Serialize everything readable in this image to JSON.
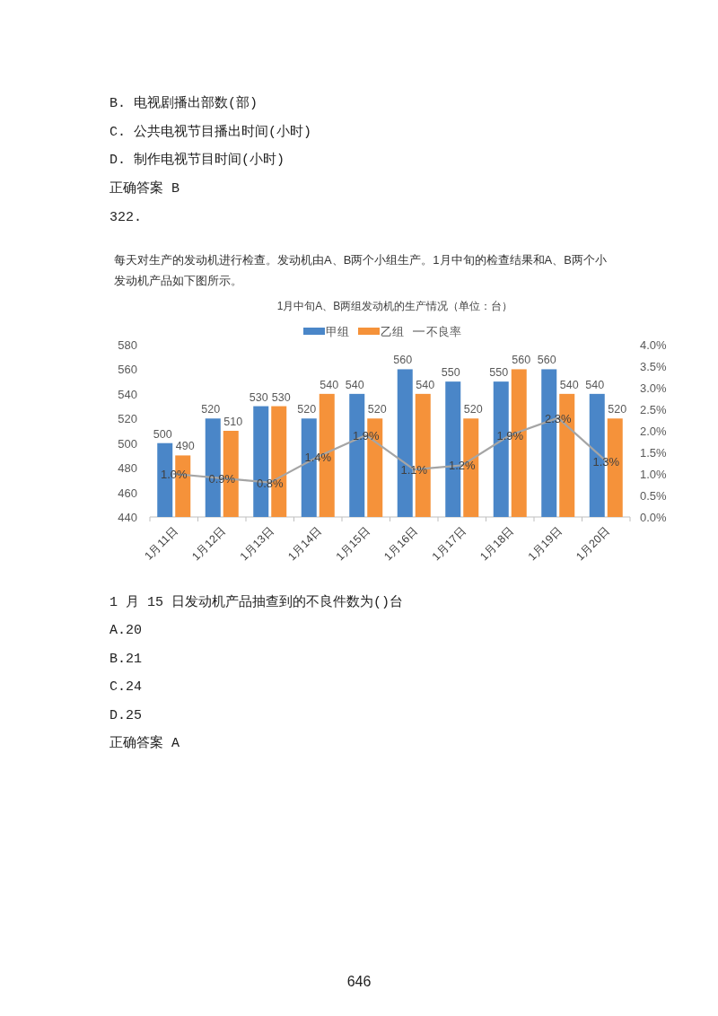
{
  "chart_data": {
    "type": "bar",
    "subtitle": "每天对生产的发动机进行检查。发动机由A、B两个小组生产。1月中旬的检查结果和A、B两个小发动机产品如下图所示。",
    "title": "1月中旬A、B两组发动机的生产情况（单位：台）",
    "categories": [
      "1月11日",
      "1月12日",
      "1月13日",
      "1月14日",
      "1月15日",
      "1月16日",
      "1月17日",
      "1月18日",
      "1月19日",
      "1月20日"
    ],
    "series": [
      {
        "name": "甲组",
        "color": "#4a86c8",
        "values": [
          500,
          520,
          530,
          520,
          540,
          560,
          550,
          550,
          560,
          540
        ],
        "value_labels": [
          "500",
          "520",
          "530",
          "520",
          "540",
          "560",
          "550",
          "550",
          "560",
          "540"
        ]
      },
      {
        "name": "乙组",
        "color": "#f5923a",
        "values": [
          490,
          510,
          530,
          540,
          520,
          540,
          520,
          560,
          540,
          520
        ],
        "value_labels": [
          "490",
          "510",
          "530",
          "540",
          "520",
          "540",
          "520",
          "560",
          "540",
          "520"
        ]
      },
      {
        "name": "不良率",
        "type": "line",
        "axis": "y2",
        "color": "#a5a5a5",
        "values": [
          1.0,
          0.9,
          0.8,
          1.4,
          1.9,
          1.1,
          1.2,
          1.9,
          2.3,
          1.3
        ],
        "value_labels": [
          "1.0%",
          "0.9%",
          "0.8%",
          "1.4%",
          "1.9%",
          "1.1%",
          "1.2%",
          "1.9%",
          "2.3%",
          "1.3%"
        ]
      }
    ],
    "ylim": [
      440,
      580
    ],
    "yticks": [
      440,
      460,
      480,
      500,
      520,
      540,
      560,
      580
    ],
    "y2lim": [
      0,
      4
    ],
    "y2ticks": [
      {
        "value": 0,
        "label": "0.0%"
      },
      {
        "value": 0.5,
        "label": "0.5%"
      },
      {
        "value": 1,
        "label": "1.0%"
      },
      {
        "value": 1.5,
        "label": "1.5%"
      },
      {
        "value": 2,
        "label": "2.0%"
      },
      {
        "value": 2.5,
        "label": "2.5%"
      },
      {
        "value": 3,
        "label": "3.0%"
      },
      {
        "value": 3.5,
        "label": "3.5%"
      },
      {
        "value": 4,
        "label": "4.0%"
      }
    ],
    "legend": "top",
    "annotations": [
      "B. 电视剧播出部数(部)",
      "C. 公共电视节目播出时间(小时)",
      "D. 制作电视节目时间(小时)",
      "正确答案 B",
      "322.",
      "1 月 15 日发动机产品抽查到的不良件数为()台",
      "A.20",
      "B.21",
      "C.24",
      "D.25",
      "正确答案 A",
      "646"
    ]
  }
}
